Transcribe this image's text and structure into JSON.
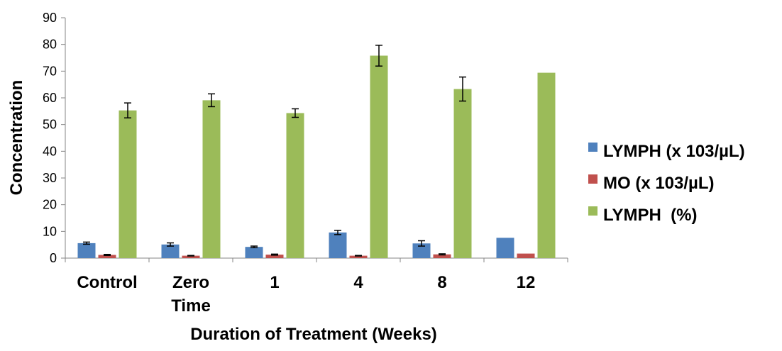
{
  "chart_data": {
    "type": "bar",
    "xlabel": "Duration of Treatment (Weeks)",
    "ylabel": "Concentration",
    "ylim": [
      0,
      90
    ],
    "yticks": [
      0,
      10,
      20,
      30,
      40,
      50,
      60,
      70,
      80,
      90
    ],
    "grid": false,
    "legend_position": "right",
    "categories": [
      [
        "Control"
      ],
      [
        "Zero",
        "Time"
      ],
      [
        "1"
      ],
      [
        "4"
      ],
      [
        "8"
      ],
      [
        "12"
      ]
    ],
    "series": [
      {
        "name": "LYMPH (x 103/µL)",
        "color": "#4F81BD",
        "values": [
          5.6,
          5.1,
          4.2,
          9.6,
          5.5,
          7.6
        ],
        "errors": [
          0.4,
          0.6,
          0.3,
          0.8,
          1.0,
          0
        ]
      },
      {
        "name": "MO (x 103/µL)",
        "color": "#C0504D",
        "values": [
          1.2,
          0.9,
          1.3,
          0.9,
          1.4,
          1.7
        ],
        "errors": [
          0.2,
          0.1,
          0.2,
          0.1,
          0.2,
          0
        ]
      },
      {
        "name": "LYMPH  (%)",
        "color": "#9BBB59",
        "values": [
          55.3,
          59.1,
          54.3,
          75.8,
          63.3,
          69.4
        ],
        "errors": [
          2.8,
          2.4,
          1.6,
          3.9,
          4.5,
          0
        ]
      }
    ]
  }
}
